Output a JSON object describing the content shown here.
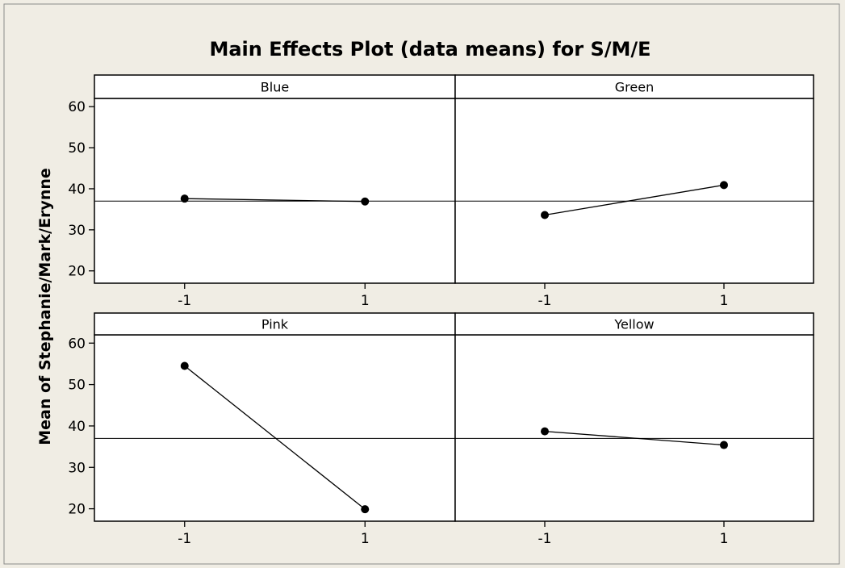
{
  "chart_data": {
    "type": "line",
    "title": "Main Effects Plot (data means) for S/M/E",
    "ylabel": "Mean of Stephanie/Mark/Erynne",
    "x_levels": [
      "-1",
      "1"
    ],
    "y_ticks": [
      20,
      30,
      40,
      50,
      60
    ],
    "ylim": [
      17,
      62
    ],
    "grand_mean": 37.0,
    "grid": false,
    "panels": [
      {
        "name": "Blue",
        "x": [
          -1,
          1
        ],
        "values": [
          37.6,
          36.9
        ]
      },
      {
        "name": "Green",
        "x": [
          -1,
          1
        ],
        "values": [
          33.6,
          40.9
        ]
      },
      {
        "name": "Pink",
        "x": [
          -1,
          1
        ],
        "values": [
          54.5,
          19.9
        ]
      },
      {
        "name": "Yellow",
        "x": [
          -1,
          1
        ],
        "values": [
          38.7,
          35.4
        ]
      }
    ]
  }
}
